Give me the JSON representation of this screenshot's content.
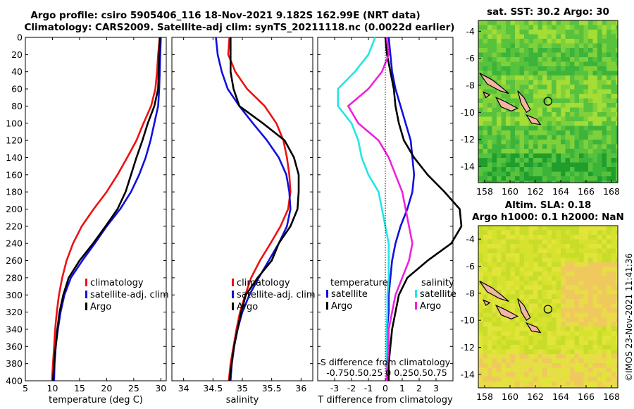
{
  "header": {
    "title_line1": "Argo profile: csiro 5905406_116 18-Nov-2021 9.182S 162.99E (NRT data)",
    "title_line2": "Climatology: CARS2009. Satellite-adj clim: synTS_20211118.nc (0.0022d earlier)"
  },
  "map_sst": {
    "title": "sat. SST: 30.2 Argo: 30",
    "palette": [
      "#1f9e2c",
      "#3cb43a",
      "#57c23e",
      "#7fd13c",
      "#a3dd35"
    ]
  },
  "map_sla": {
    "title_line1": "Altim. SLA: 0.18",
    "title_line2": "Argo h1000: 0.1 h2000: NaN",
    "palette": [
      "#c8dc2a",
      "#d6e22e",
      "#e1e43a",
      "#e8dc48",
      "#efc85e"
    ]
  },
  "map_axes": {
    "x_ticks": [
      "158",
      "160",
      "162",
      "164",
      "166",
      "168"
    ],
    "y_ticks": [
      "-4",
      "-6",
      "-8",
      "-10",
      "-12",
      "-14"
    ],
    "float_lon": 162.99,
    "float_lat": -9.182
  },
  "side_label": "©IMOS 23-Nov-2021 11:41:36",
  "colors": {
    "climatology": "#ee1111",
    "satellite": "#1111dd",
    "argo": "#000000",
    "sat_t": "#22e6e6",
    "sat_s": "#ee22dd"
  },
  "chart_data": [
    {
      "type": "line",
      "title": "",
      "xlabel": "temperature (deg C)",
      "ylabel": "",
      "xlim": [
        5,
        31
      ],
      "ylim": [
        400,
        0
      ],
      "x_ticks": [
        "5",
        "10",
        "15",
        "20",
        "25",
        "30"
      ],
      "y_ticks": [
        "0",
        "20",
        "40",
        "60",
        "80",
        "100",
        "120",
        "140",
        "160",
        "180",
        "200",
        "220",
        "240",
        "260",
        "280",
        "300",
        "320",
        "340",
        "360",
        "380",
        "400"
      ],
      "depth": [
        0,
        20,
        40,
        60,
        80,
        100,
        120,
        140,
        160,
        180,
        200,
        220,
        240,
        260,
        280,
        300,
        320,
        340,
        360,
        380,
        400
      ],
      "series": [
        {
          "name": "climatology",
          "values": [
            29.8,
            29.5,
            29.3,
            29.0,
            28.2,
            26.8,
            25.5,
            23.8,
            22.0,
            20.0,
            17.6,
            15.4,
            13.8,
            12.6,
            11.8,
            11.2,
            10.8,
            10.5,
            10.3,
            10.1,
            9.9
          ]
        },
        {
          "name": "satellite-adj. clim",
          "values": [
            30.0,
            29.9,
            29.8,
            29.7,
            29.5,
            28.8,
            28.1,
            27.2,
            26.0,
            24.5,
            22.5,
            20.0,
            17.8,
            15.5,
            13.4,
            12.2,
            11.5,
            11.0,
            10.6,
            10.4,
            10.3
          ]
        },
        {
          "name": "Argo",
          "values": [
            29.8,
            29.7,
            29.6,
            29.5,
            28.8,
            27.6,
            26.6,
            25.5,
            24.5,
            23.5,
            22.0,
            19.8,
            17.5,
            15.0,
            13.0,
            12.0,
            11.3,
            10.9,
            10.6,
            10.3,
            10.1
          ]
        }
      ],
      "legend": [
        "climatology",
        "satellite-adj. clim",
        "Argo"
      ]
    },
    {
      "type": "line",
      "xlabel": "salinity",
      "xlim": [
        33.8,
        36.2
      ],
      "ylim": [
        400,
        0
      ],
      "x_ticks": [
        "34",
        "34.5",
        "35",
        "35.5",
        "36"
      ],
      "depth": [
        0,
        20,
        40,
        60,
        80,
        100,
        120,
        140,
        160,
        180,
        200,
        220,
        240,
        260,
        280,
        300,
        320,
        340,
        360,
        380,
        400
      ],
      "series": [
        {
          "name": "climatology",
          "values": [
            34.78,
            34.76,
            34.88,
            35.08,
            35.38,
            35.58,
            35.7,
            35.76,
            35.8,
            35.82,
            35.78,
            35.65,
            35.48,
            35.3,
            35.15,
            35.05,
            34.96,
            34.9,
            34.85,
            34.8,
            34.77
          ]
        },
        {
          "name": "satellite-adj. clim",
          "values": [
            34.55,
            34.58,
            34.65,
            34.75,
            34.95,
            35.18,
            35.42,
            35.62,
            35.75,
            35.8,
            35.82,
            35.76,
            35.62,
            35.45,
            35.28,
            35.12,
            35.0,
            34.92,
            34.86,
            34.82,
            34.8
          ]
        },
        {
          "name": "Argo",
          "values": [
            34.8,
            34.8,
            34.8,
            34.85,
            34.95,
            35.35,
            35.72,
            35.88,
            35.96,
            35.96,
            35.94,
            35.82,
            35.62,
            35.5,
            35.26,
            35.06,
            34.98,
            34.92,
            34.86,
            34.82,
            34.78
          ]
        }
      ],
      "legend": [
        "climatology",
        "satellite-adj. clim",
        "Argo"
      ]
    },
    {
      "type": "line",
      "xlabel": "T difference from climatology",
      "xlim": [
        -4,
        4
      ],
      "ylim": [
        400,
        0
      ],
      "x_ticks": [
        "-3",
        "-2",
        "-1",
        "0",
        "1",
        "2",
        "3"
      ],
      "top_label": "S difference from climatology",
      "top_ticks": "-0.75 0.5 0.25 0 0.25 0.5 0.75",
      "top_ticks_text": "-0.750.50.25 0 0.250.50.75",
      "depth": [
        0,
        20,
        40,
        60,
        80,
        100,
        120,
        140,
        160,
        180,
        200,
        220,
        240,
        260,
        280,
        300,
        320,
        340,
        360,
        380,
        400
      ],
      "series": [
        {
          "name": "T satellite",
          "values": [
            0.2,
            0.3,
            0.4,
            0.6,
            0.9,
            1.2,
            1.5,
            1.6,
            1.7,
            1.6,
            1.3,
            0.9,
            0.6,
            0.4,
            0.3,
            0.2,
            0.2,
            0.1,
            0.1,
            0.1,
            0.1
          ]
        },
        {
          "name": "T Argo",
          "values": [
            0.0,
            0.1,
            0.3,
            0.5,
            0.6,
            0.8,
            1.1,
            1.7,
            2.5,
            3.5,
            4.4,
            4.5,
            3.9,
            2.5,
            1.3,
            0.8,
            0.6,
            0.4,
            0.3,
            0.2,
            0.2
          ]
        },
        {
          "name": "S satellite",
          "values": [
            -0.15,
            -0.25,
            -0.45,
            -0.7,
            -0.7,
            -0.5,
            -0.4,
            -0.35,
            -0.25,
            -0.1,
            -0.05,
            0.0,
            0.05,
            0.05,
            0.05,
            0.03,
            0.03,
            0.02,
            0.02,
            0.02,
            0.02
          ]
        },
        {
          "name": "S Argo",
          "values": [
            0.02,
            0.05,
            -0.05,
            -0.25,
            -0.55,
            -0.4,
            -0.1,
            0.05,
            0.15,
            0.25,
            0.3,
            0.35,
            0.4,
            0.35,
            0.25,
            0.15,
            0.1,
            0.05,
            0.05,
            0.03,
            0.02
          ]
        }
      ],
      "legend_left_title": "temperature",
      "legend_right_title": "salinity",
      "legend": [
        "satellite",
        "Argo",
        "satellite",
        "Argo"
      ]
    }
  ]
}
